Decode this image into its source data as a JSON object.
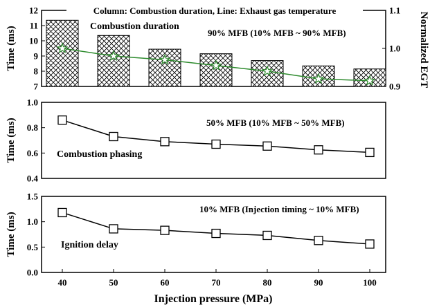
{
  "figure": {
    "xlabel": "Injection pressure (MPa)",
    "x_ticks": [
      "40",
      "50",
      "60",
      "70",
      "80",
      "90",
      "100"
    ]
  },
  "chart_data": [
    {
      "type": "bar",
      "title": "Column: Combustion duration, Line: Exhaust gas temperature",
      "annotation": "90% MFB (10% MFB ~ 90% MFB)",
      "series_label": "Combustion duration",
      "categories": [
        40,
        50,
        60,
        70,
        80,
        90,
        100
      ],
      "values": [
        11.35,
        10.35,
        9.45,
        9.15,
        8.7,
        8.35,
        8.15
      ],
      "ylabel": "Time (ms)",
      "ylim": [
        7,
        12
      ],
      "yticks": [
        "7",
        "8",
        "9",
        "10",
        "11",
        "12"
      ],
      "bar_fill": "crosshatch",
      "secondary": {
        "type": "line",
        "values": [
          1.0,
          0.98,
          0.97,
          0.955,
          0.94,
          0.92,
          0.915
        ],
        "ylabel": "Normalized EGT",
        "ylim": [
          0.9,
          1.1
        ],
        "yticks": [
          "0.9",
          "1.0",
          "1.1"
        ],
        "marker": "star",
        "color": "#2e8b2e"
      }
    },
    {
      "type": "line",
      "annotation": "50% MFB (10% MFB ~ 50% MFB)",
      "series_label": "Combustion phasing",
      "x": [
        40,
        50,
        60,
        70,
        80,
        90,
        100
      ],
      "values": [
        0.86,
        0.73,
        0.69,
        0.67,
        0.655,
        0.625,
        0.605
      ],
      "ylabel": "Time (ms)",
      "ylim": [
        0.4,
        1.0
      ],
      "yticks": [
        "0.4",
        "0.6",
        "0.8",
        "1.0"
      ],
      "marker": "square",
      "color": "#000000"
    },
    {
      "type": "line",
      "annotation": "10% MFB (Injection timing ~ 10% MFB)",
      "series_label": "Ignition delay",
      "x": [
        40,
        50,
        60,
        70,
        80,
        90,
        100
      ],
      "values": [
        1.18,
        0.86,
        0.83,
        0.77,
        0.73,
        0.63,
        0.56
      ],
      "ylabel": "Time (ms)",
      "ylim": [
        0.0,
        1.5
      ],
      "yticks": [
        "0.0",
        "0.5",
        "1.0",
        "1.5"
      ],
      "marker": "square",
      "color": "#000000"
    }
  ]
}
